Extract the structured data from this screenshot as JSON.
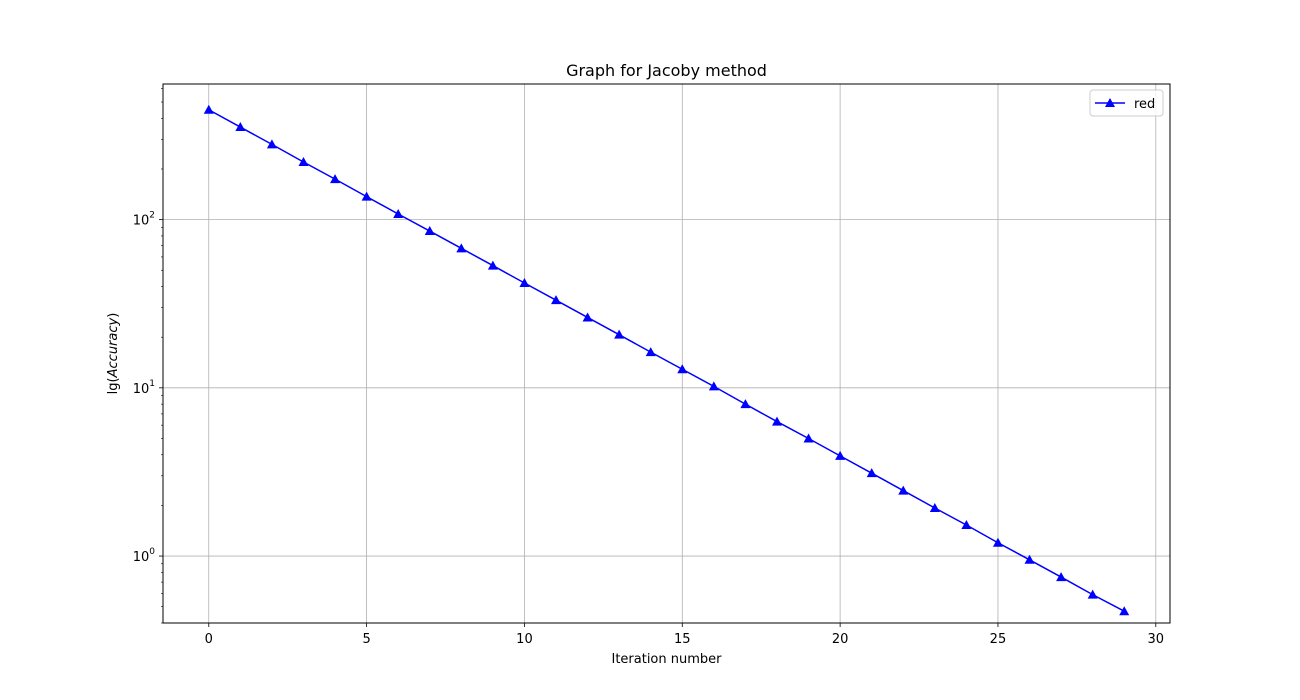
{
  "chart_data": {
    "type": "line",
    "title": "Graph for Jacoby method",
    "xlabel": "Iteration number",
    "ylabel_prefix": "lg(",
    "ylabel_var": "Accuracy",
    "ylabel_suffix": ")",
    "yscale": "log",
    "grid": true,
    "legend_placement": "top-right",
    "xlim": [
      -1.45,
      30.45
    ],
    "ylim": [
      0.4,
      640
    ],
    "x_ticks": [
      0,
      5,
      10,
      15,
      20,
      25,
      30
    ],
    "y_ticks": [
      {
        "value": 1,
        "base": "10",
        "exp": "0"
      },
      {
        "value": 10,
        "base": "10",
        "exp": "1"
      },
      {
        "value": 100,
        "base": "10",
        "exp": "2"
      }
    ],
    "series": [
      {
        "name": "red",
        "color": "#0000ff",
        "marker": "triangle-up",
        "x": [
          0,
          1,
          2,
          3,
          4,
          5,
          6,
          7,
          8,
          9,
          10,
          11,
          12,
          13,
          14,
          15,
          16,
          17,
          18,
          19,
          20,
          21,
          22,
          23,
          24,
          25,
          26,
          27,
          28,
          29
        ],
        "y": [
          450,
          355,
          280,
          220,
          174,
          137,
          108,
          85.5,
          67.5,
          53.3,
          42.0,
          33.2,
          26.2,
          20.7,
          16.3,
          12.9,
          10.2,
          8.0,
          6.3,
          5.0,
          3.94,
          3.11,
          2.45,
          1.93,
          1.53,
          1.2,
          0.95,
          0.75,
          0.59,
          0.47
        ]
      }
    ]
  }
}
